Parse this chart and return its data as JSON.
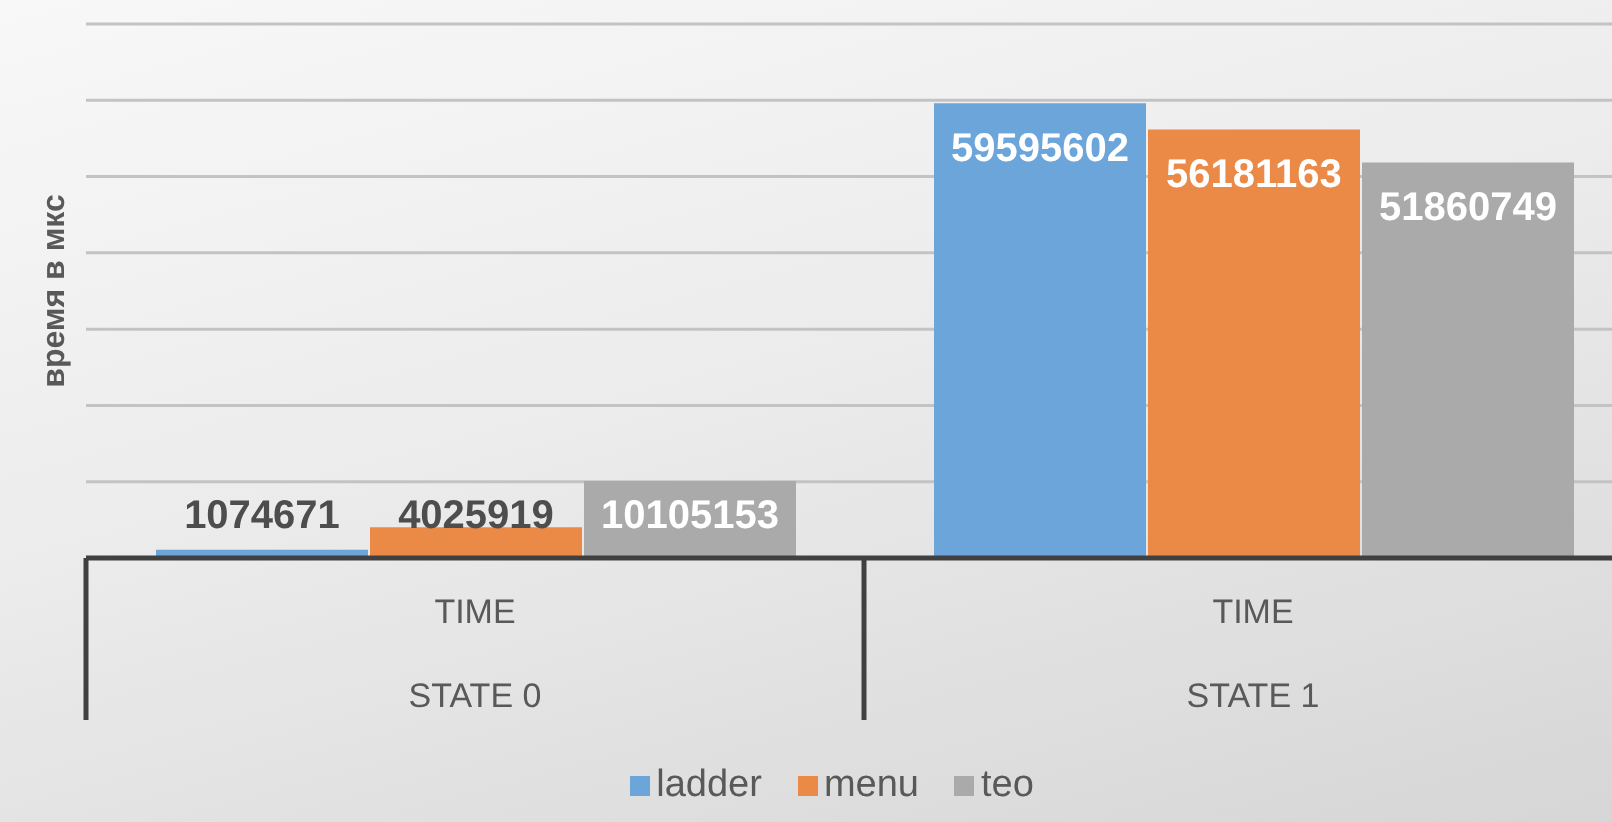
{
  "chart_data": {
    "type": "bar",
    "ylabel": "время в мкс",
    "categories": [
      "TIME\nSTATE 0",
      "TIME\nSTATE 1"
    ],
    "series": [
      {
        "name": "ladder",
        "color": "#6ba5da",
        "values": [
          1074671,
          59595602
        ]
      },
      {
        "name": "menu",
        "color": "#eb8a47",
        "values": [
          4025919,
          56181163
        ]
      },
      {
        "name": "teo",
        "color": "#aaaaaa",
        "values": [
          10105153,
          51860749
        ]
      }
    ],
    "ylim": [
      0,
      70000000
    ],
    "grid": "y",
    "legend": "bottom",
    "data_labels": true,
    "tick_labels": "x"
  }
}
